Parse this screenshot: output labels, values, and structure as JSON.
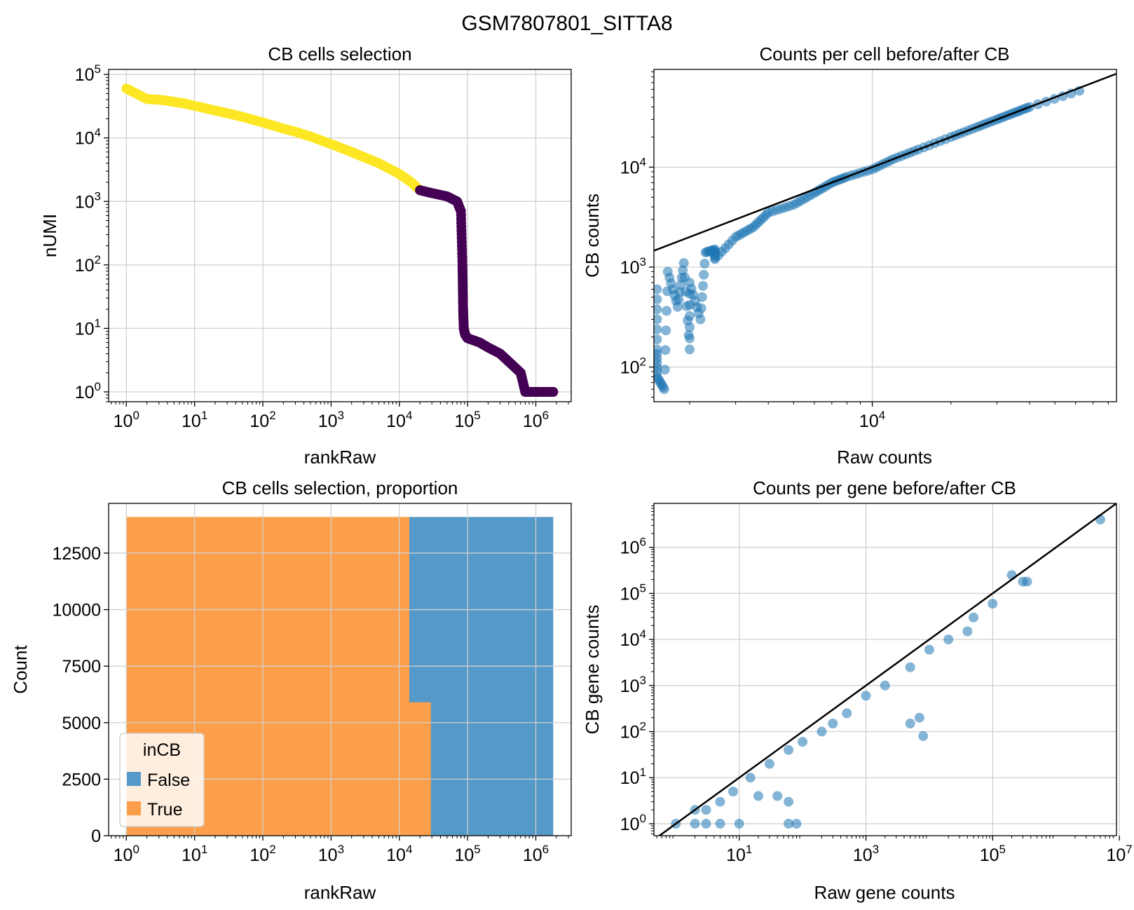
{
  "figure": {
    "title": "GSM7807801_SITTA8"
  },
  "chart_data": [
    {
      "id": "knee",
      "type": "scatter",
      "title": "CB cells selection",
      "xlabel": "rankRaw",
      "ylabel": "nUMI",
      "xscale": "log",
      "yscale": "log",
      "xlim": [
        0.55,
        3300000
      ],
      "ylim": [
        0.7,
        120000
      ],
      "xticks": [
        "10^0",
        "10^1",
        "10^2",
        "10^3",
        "10^4",
        "10^5",
        "10^6"
      ],
      "yticks": [
        "10^0",
        "10^1",
        "10^2",
        "10^3",
        "10^4",
        "10^5"
      ],
      "grid": true,
      "colors": {
        "in_cb": "#fde725",
        "not_in_cb": "#440154"
      },
      "series": [
        {
          "in_cb": true,
          "points": [
            [
              1,
              60000
            ],
            [
              2,
              41000
            ],
            [
              3,
              40000
            ],
            [
              4,
              38500
            ],
            [
              5,
              37000
            ],
            [
              7,
              35000
            ],
            [
              10,
              32000
            ],
            [
              20,
              27000
            ],
            [
              30,
              24500
            ],
            [
              50,
              21500
            ],
            [
              100,
              17500
            ],
            [
              200,
              14000
            ],
            [
              300,
              12500
            ],
            [
              500,
              10500
            ],
            [
              1000,
              8000
            ],
            [
              2000,
              6000
            ],
            [
              3000,
              5000
            ],
            [
              5000,
              4000
            ],
            [
              10000,
              2700
            ],
            [
              15000,
              2000
            ],
            [
              20000,
              1500
            ]
          ]
        },
        {
          "in_cb": false,
          "points": [
            [
              20000,
              1500
            ],
            [
              30000,
              1350
            ],
            [
              50000,
              1200
            ],
            [
              70000,
              1000
            ],
            [
              80000,
              700
            ],
            [
              84000,
              100
            ],
            [
              86000,
              20
            ],
            [
              88000,
              10
            ],
            [
              92000,
              8
            ],
            [
              100000,
              7
            ],
            [
              150000,
              6
            ],
            [
              200000,
              5
            ],
            [
              300000,
              4
            ],
            [
              400000,
              3
            ],
            [
              600000,
              2
            ],
            [
              700000,
              1
            ],
            [
              1000000,
              1
            ],
            [
              1800000,
              1
            ]
          ]
        }
      ]
    },
    {
      "id": "cell_counts",
      "type": "scatter",
      "title": "Counts per cell before/after CB",
      "xlabel": "Raw counts",
      "ylabel": "CB counts",
      "xscale": "log",
      "yscale": "log",
      "xlim": [
        1460,
        86000
      ],
      "ylim": [
        45,
        95000
      ],
      "xticks": [
        "10^4"
      ],
      "yticks": [
        "10^2",
        "10^3",
        "10^4"
      ],
      "grid": true,
      "colors": {
        "points": "#1f77b4",
        "identity_line": "#000000"
      },
      "series": [
        {
          "name": "",
          "points": [
            [
              1500,
              600
            ],
            [
              1500,
              150
            ],
            [
              1500,
              80
            ],
            [
              1600,
              60
            ],
            [
              1650,
              900
            ],
            [
              1800,
              400
            ],
            [
              1900,
              1100
            ],
            [
              2000,
              150
            ],
            [
              2000,
              700
            ],
            [
              2200,
              300
            ],
            [
              2300,
              1400
            ],
            [
              2500,
              1500
            ],
            [
              2500,
              1200
            ],
            [
              3000,
              2000
            ],
            [
              3500,
              2500
            ],
            [
              4000,
              3500
            ],
            [
              5000,
              4200
            ],
            [
              6000,
              5500
            ],
            [
              7000,
              7000
            ],
            [
              8000,
              8000
            ],
            [
              10000,
              9500
            ],
            [
              12000,
              12000
            ],
            [
              15000,
              15000
            ],
            [
              20000,
              20000
            ],
            [
              25000,
              25000
            ],
            [
              30000,
              30000
            ],
            [
              35000,
              35000
            ],
            [
              40000,
              40000
            ],
            [
              62000,
              58000
            ]
          ]
        }
      ]
    },
    {
      "id": "proportion",
      "type": "bar",
      "title": "CB cells selection, proportion",
      "xlabel": "rankRaw",
      "ylabel": "Count",
      "xscale": "log",
      "xlim": [
        0.55,
        3300000
      ],
      "ylim": [
        0,
        14700
      ],
      "xticks": [
        "10^0",
        "10^1",
        "10^2",
        "10^3",
        "10^4",
        "10^5",
        "10^6"
      ],
      "yticks": [
        "0",
        "2500",
        "5000",
        "7500",
        "10000",
        "12500"
      ],
      "grid": true,
      "legend": {
        "title": "inCB",
        "placement": "lower-left",
        "entries": [
          {
            "label": "False",
            "color": "#5599c8"
          },
          {
            "label": "True",
            "color": "#fd9f4a"
          }
        ]
      },
      "series": [
        {
          "name": "False",
          "color": "#5599c8",
          "segments": [
            {
              "x_from": 14000,
              "x_to": 1800000,
              "y_from": 0,
              "y_to": 14100
            }
          ]
        },
        {
          "name": "True",
          "color": "#fd9f4a",
          "segments": [
            {
              "x_from": 1,
              "x_to": 14000,
              "y_from": 0,
              "y_to": 14100
            },
            {
              "x_from": 14000,
              "x_to": 29000,
              "y_from": 0,
              "y_to": 5900
            }
          ]
        }
      ]
    },
    {
      "id": "gene_counts",
      "type": "scatter",
      "title": "Counts per gene before/after CB",
      "xlabel": "Raw gene counts",
      "ylabel": "CB gene counts",
      "xscale": "log",
      "yscale": "log",
      "xlim": [
        0.45,
        9000000
      ],
      "ylim": [
        0.55,
        9000000
      ],
      "xticks": [
        "10^1",
        "10^3",
        "10^5",
        "10^7"
      ],
      "yticks": [
        "10^0",
        "10^1",
        "10^2",
        "10^3",
        "10^4",
        "10^5",
        "10^6"
      ],
      "grid": true,
      "colors": {
        "points": "#1f77b4",
        "identity_line": "#000000"
      },
      "series": [
        {
          "name": "",
          "points": [
            [
              1,
              1
            ],
            [
              2,
              1
            ],
            [
              3,
              1
            ],
            [
              5,
              1
            ],
            [
              10,
              1
            ],
            [
              60,
              1
            ],
            [
              80,
              1
            ],
            [
              2,
              2
            ],
            [
              3,
              2
            ],
            [
              5,
              3
            ],
            [
              8,
              5
            ],
            [
              15,
              10
            ],
            [
              20,
              4
            ],
            [
              40,
              4
            ],
            [
              60,
              3
            ],
            [
              30,
              20
            ],
            [
              60,
              40
            ],
            [
              100,
              60
            ],
            [
              200,
              100
            ],
            [
              300,
              150
            ],
            [
              500,
              250
            ],
            [
              1000,
              600
            ],
            [
              2000,
              1000
            ],
            [
              5000,
              2500
            ],
            [
              10000,
              6000
            ],
            [
              20000,
              10000
            ],
            [
              50000,
              30000
            ],
            [
              100000,
              60000
            ],
            [
              5000,
              150
            ],
            [
              7000,
              200
            ],
            [
              8000,
              80
            ],
            [
              40000,
              15000
            ],
            [
              200000,
              250000
            ],
            [
              300000,
              180000
            ],
            [
              350000,
              180000
            ],
            [
              5000000,
              4000000
            ]
          ]
        }
      ]
    }
  ]
}
